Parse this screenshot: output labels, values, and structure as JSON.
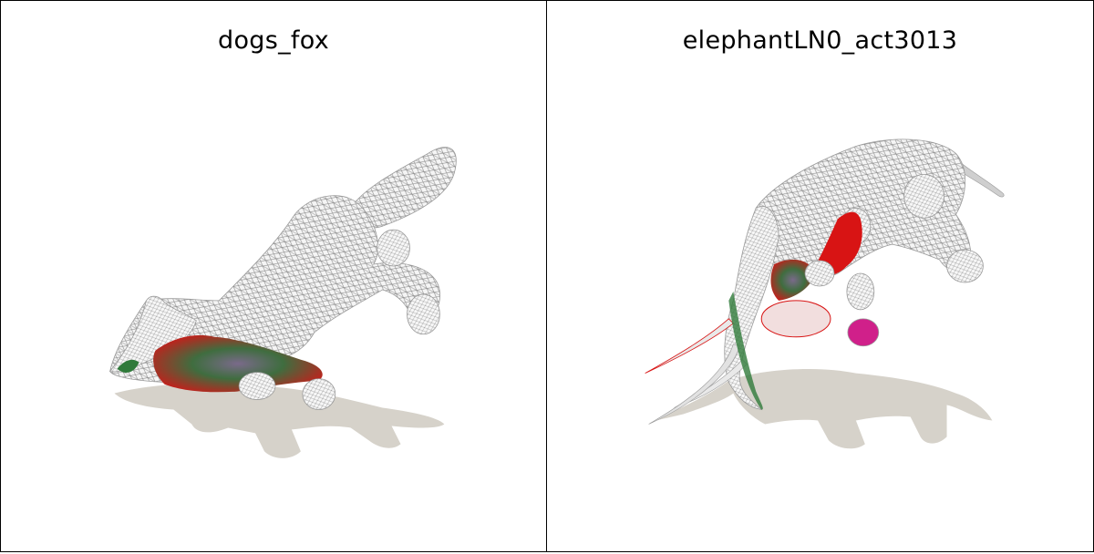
{
  "panels": [
    {
      "title": "dogs_fox"
    },
    {
      "title": "elephantLN0_act3013"
    }
  ],
  "colors": {
    "shadow": "#d6d2ca",
    "mesh_fill": "#f4f4f4",
    "mesh_line": "#8a8a8a",
    "highlight_red": "#d81414",
    "highlight_green": "#2f7a3a",
    "highlight_purple": "#6a4a7a",
    "highlight_magenta": "#d0208a"
  }
}
